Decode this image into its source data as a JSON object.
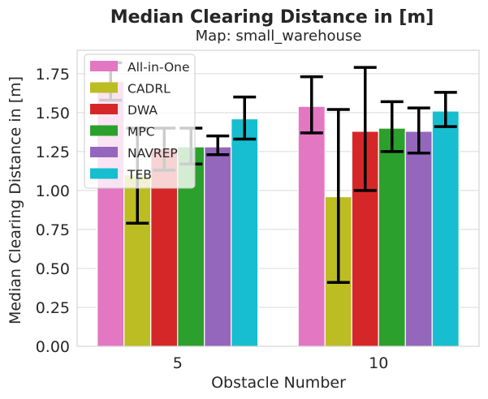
{
  "chart_data": {
    "type": "bar",
    "title": "Median Clearing Distance in [m]",
    "subtitle": "Map: small_warehouse",
    "xlabel": "Obstacle Number",
    "ylabel": "Median Clearing Distance in [m]",
    "categories": [
      "5",
      "10"
    ],
    "ylim": [
      0,
      1.9
    ],
    "yticks": [
      "0.00",
      "0.25",
      "0.50",
      "0.75",
      "1.00",
      "1.25",
      "1.50",
      "1.75"
    ],
    "grid": true,
    "legend_position": "top-left",
    "series": [
      {
        "name": "All-in-One",
        "color": "#e377c2",
        "values": [
          1.7,
          1.54
        ],
        "err_low": [
          1.58,
          1.37
        ],
        "err_high": [
          1.82,
          1.73
        ]
      },
      {
        "name": "CADRL",
        "color": "#bcbd22",
        "values": [
          1.1,
          0.96
        ],
        "err_low": [
          0.79,
          0.41
        ],
        "err_high": [
          1.4,
          1.52
        ]
      },
      {
        "name": "DWA",
        "color": "#d62728",
        "values": [
          1.27,
          1.38
        ],
        "err_low": [
          1.13,
          1.0
        ],
        "err_high": [
          1.4,
          1.79
        ]
      },
      {
        "name": "MPC",
        "color": "#2ca02c",
        "values": [
          1.28,
          1.4
        ],
        "err_low": [
          1.17,
          1.25
        ],
        "err_high": [
          1.4,
          1.57
        ]
      },
      {
        "name": "NAVREP",
        "color": "#9467bd",
        "values": [
          1.28,
          1.38
        ],
        "err_low": [
          1.23,
          1.24
        ],
        "err_high": [
          1.35,
          1.53
        ]
      },
      {
        "name": "TEB",
        "color": "#17becf",
        "values": [
          1.46,
          1.51
        ],
        "err_low": [
          1.33,
          1.41
        ],
        "err_high": [
          1.6,
          1.63
        ]
      }
    ]
  }
}
